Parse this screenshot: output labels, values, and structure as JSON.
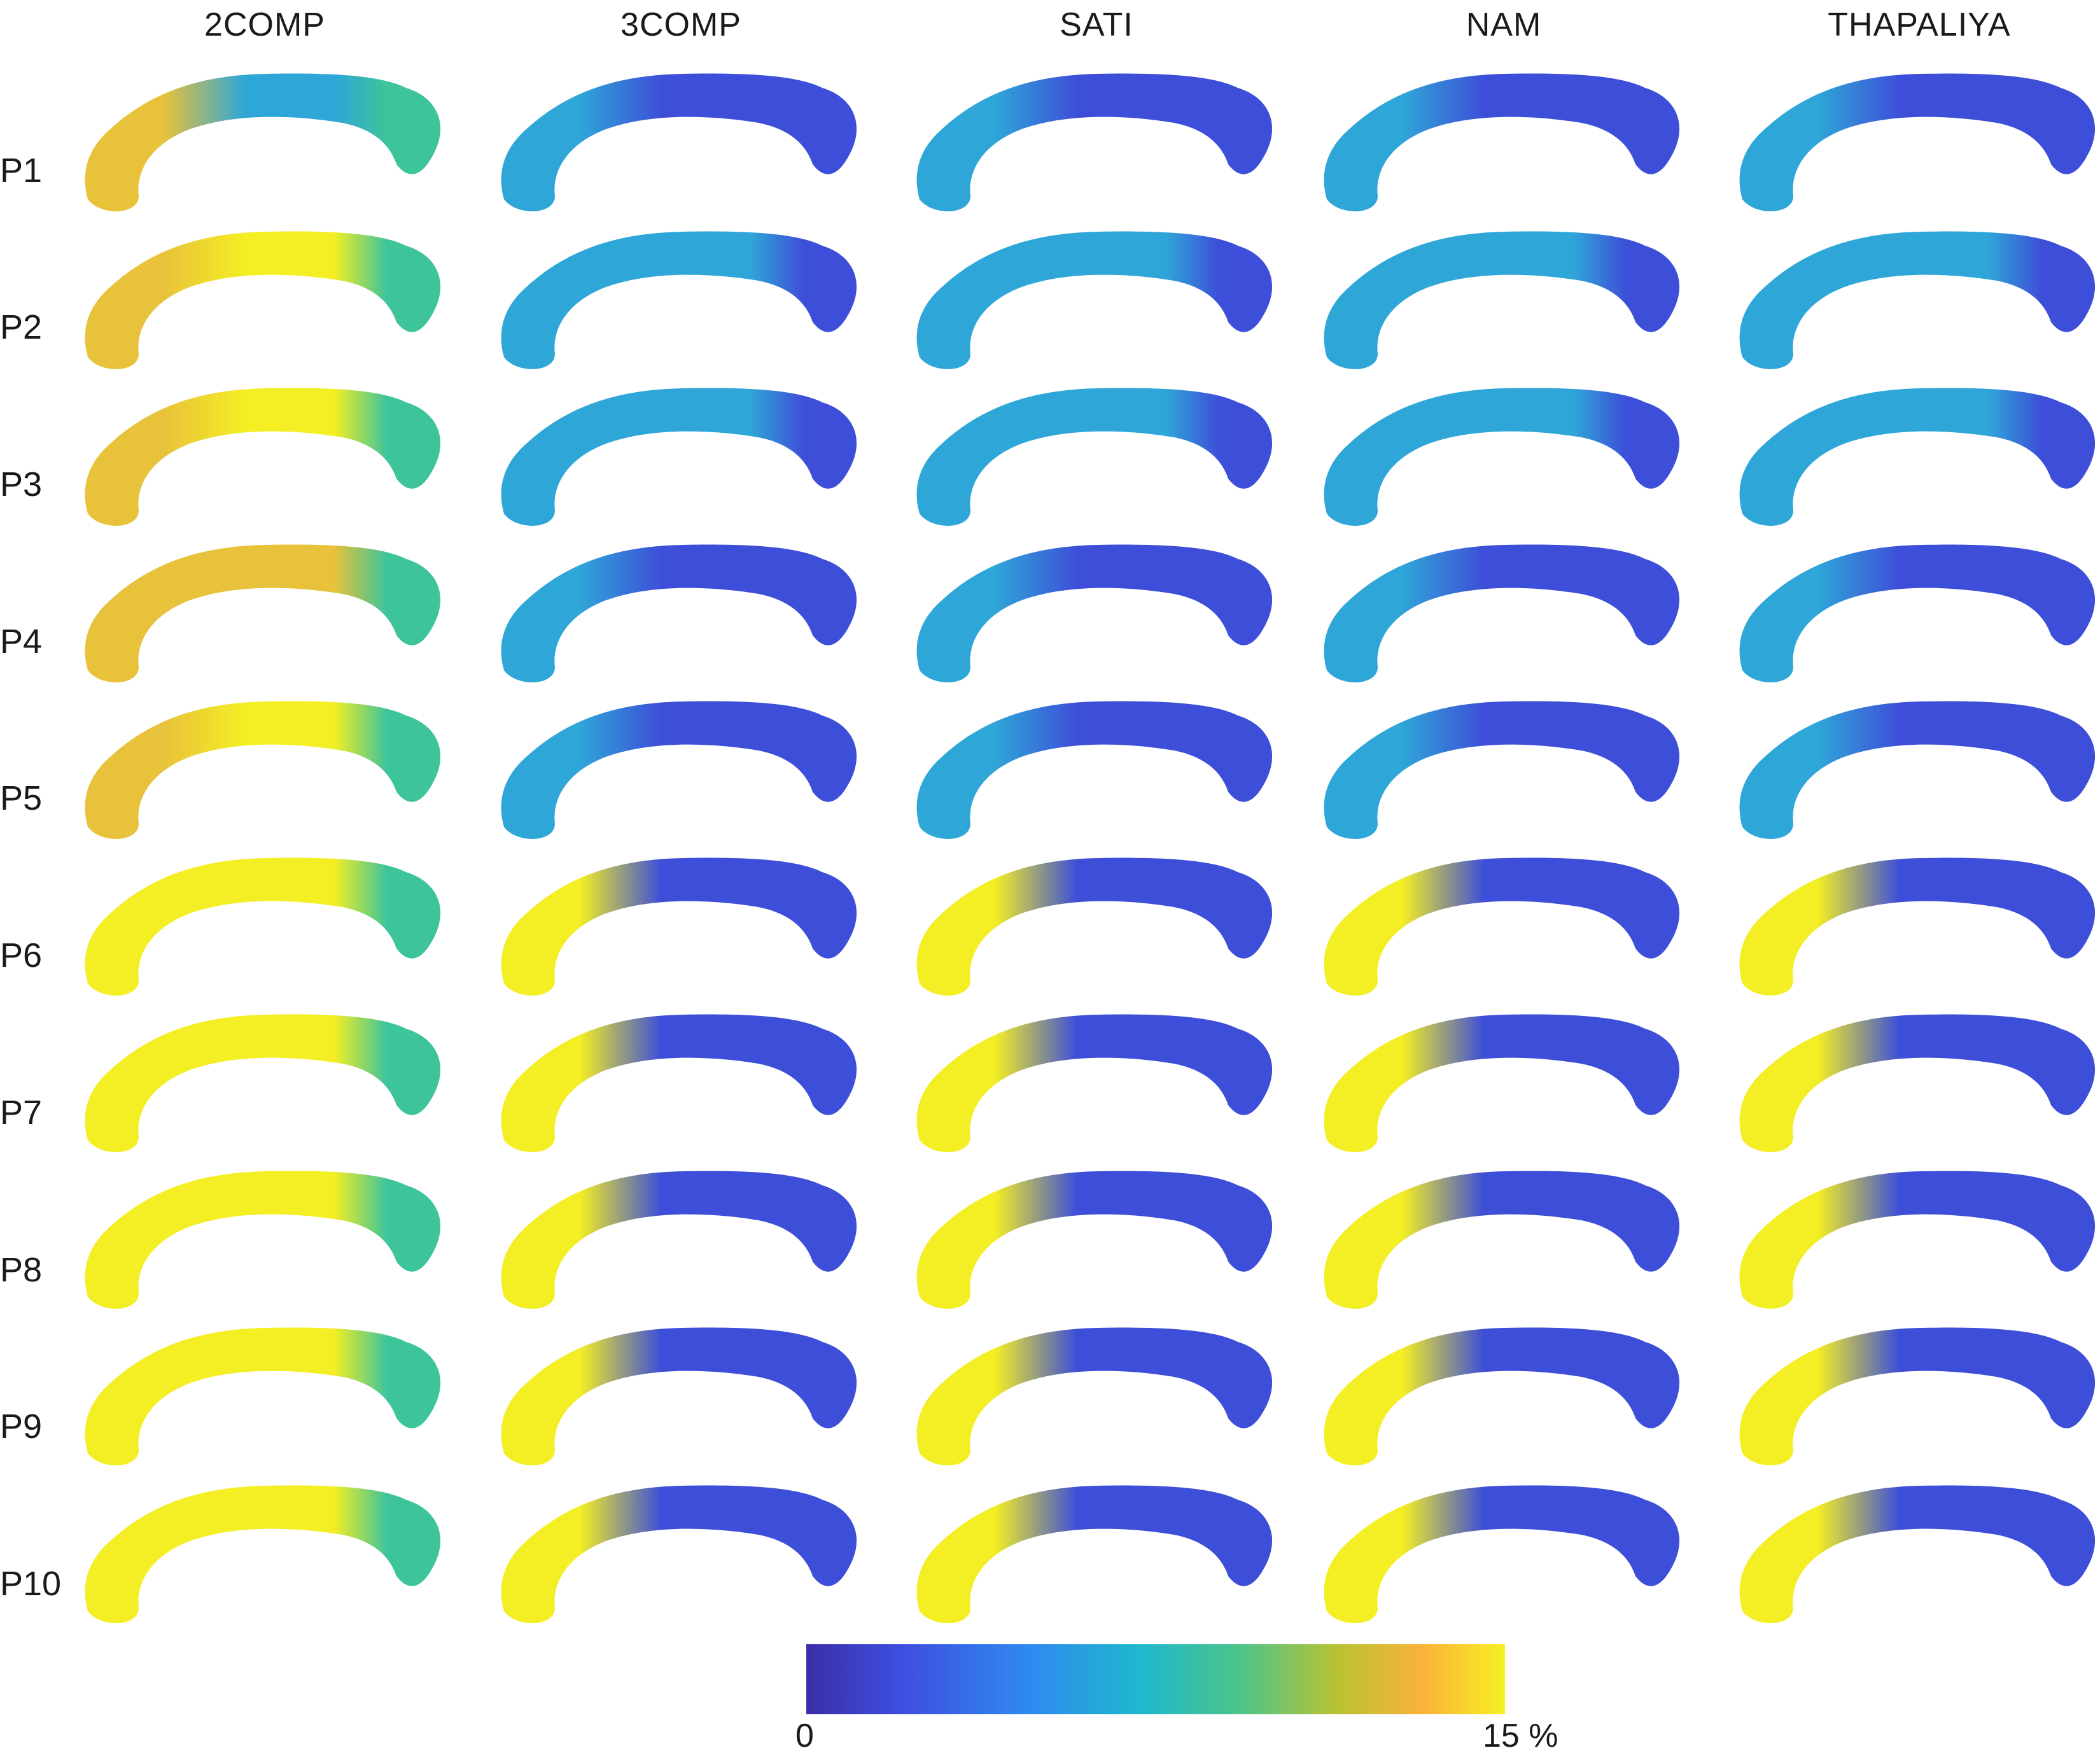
{
  "figure": {
    "columns": [
      "2COMP",
      "3COMP",
      "SATI",
      "NAM",
      "THAPALIYA"
    ],
    "rows": [
      "P1",
      "P2",
      "P3",
      "P4",
      "P5",
      "P6",
      "P7",
      "P8",
      "P9",
      "P10"
    ],
    "colorbar": {
      "min_label": "0",
      "max_label": "15 %",
      "min_value": 0,
      "max_value": 15,
      "colors": [
        "#3b2fa8",
        "#3d4fe0",
        "#2f8af0",
        "#1fb8cc",
        "#4cc48a",
        "#b9c234",
        "#f9b23a",
        "#f6f024"
      ]
    }
  },
  "style": {
    "low_color": "#3d4fd8",
    "mid_color": "#2fa6d8",
    "green_color": "#3ec49a",
    "high_color": "#f4ee24",
    "orange_color": "#e8c23a"
  }
}
